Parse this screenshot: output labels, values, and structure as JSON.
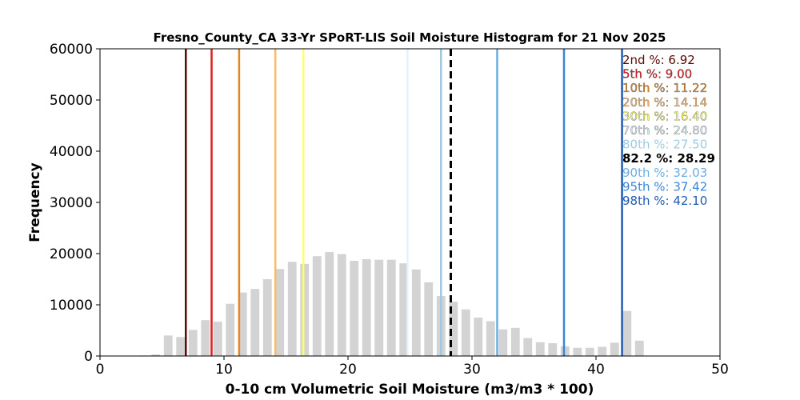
{
  "chart_data": {
    "type": "bar",
    "title": "Fresno_County_CA 33-Yr SPoRT-LIS Soil Moisture Histogram for 21 Nov 2025",
    "xlabel": "0-10 cm Volumetric Soil Moisture (m3/m3 * 100)",
    "ylabel": "Frequency",
    "xlim": [
      0,
      50
    ],
    "ylim": [
      0,
      60000
    ],
    "xticks": [
      0,
      10,
      20,
      30,
      40,
      50
    ],
    "yticks": [
      0,
      10000,
      20000,
      30000,
      40000,
      50000,
      60000
    ],
    "bar_color": "#d3d3d3",
    "x": [
      3.5,
      4.5,
      5.5,
      6.5,
      7.5,
      8.5,
      9.5,
      10.5,
      11.5,
      12.5,
      13.5,
      14.5,
      15.5,
      16.5,
      17.5,
      18.5,
      19.5,
      20.5,
      21.5,
      22.5,
      23.5,
      24.5,
      25.5,
      26.5,
      27.5,
      28.5,
      29.5,
      30.5,
      31.5,
      32.5,
      33.5,
      34.5,
      35.5,
      36.5,
      37.5,
      38.5,
      39.5,
      40.5,
      41.5,
      42.5,
      43.5
    ],
    "values": [
      100,
      300,
      4000,
      3700,
      5100,
      7000,
      6700,
      10200,
      12400,
      13100,
      15000,
      17000,
      18400,
      18000,
      19500,
      20300,
      19900,
      18600,
      18900,
      18800,
      18800,
      18100,
      16900,
      14400,
      11700,
      10600,
      9100,
      7500,
      6800,
      5200,
      5500,
      3500,
      2700,
      2500,
      1900,
      1600,
      1600,
      1800,
      2600,
      8800,
      3000
    ],
    "percentiles": [
      {
        "label": "2nd %: 6.92",
        "value": 6.92,
        "color": "#5a0a00"
      },
      {
        "label": "5th %: 9.00",
        "value": 9.0,
        "color": "#e41a1c"
      },
      {
        "label": "10th %: 11.22",
        "value": 11.22,
        "color": "#e6851c"
      },
      {
        "label": "20th %: 14.14",
        "value": 14.14,
        "color": "#fdb863"
      },
      {
        "label": "30th %: 16.40",
        "value": 16.4,
        "color": "#ffff66"
      },
      {
        "label": "70th %: 24.80",
        "value": 24.8,
        "color": "#e0f3f8"
      },
      {
        "label": "80th %: 27.50",
        "value": 27.5,
        "color": "#9ecae1"
      },
      {
        "label": "82.2 %: 28.29",
        "value": 28.29,
        "color": "#000000",
        "dashed": true
      },
      {
        "label": "90th %: 32.03",
        "value": 32.03,
        "color": "#6baee0"
      },
      {
        "label": "95th %: 37.42",
        "value": 37.42,
        "color": "#3a85d8"
      },
      {
        "label": "98th %: 42.10",
        "value": 42.1,
        "color": "#1f5bb3"
      }
    ]
  }
}
